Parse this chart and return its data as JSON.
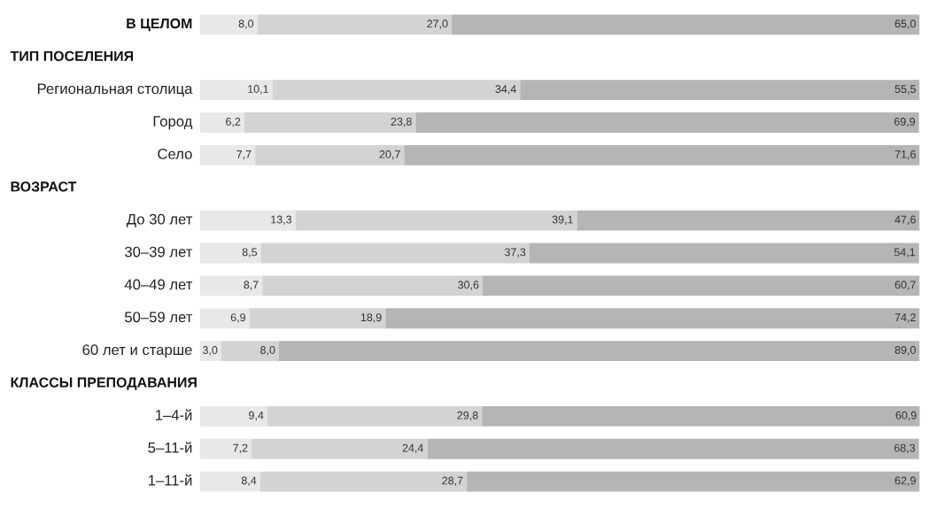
{
  "chart_data": {
    "type": "bar",
    "orientation": "horizontal",
    "stacked": true,
    "xlim": [
      0,
      100
    ],
    "tick_labels": "y",
    "annotations": [
      "ТИП ПОСЕЛЕНИЯ",
      "ВОЗРАСТ",
      "КЛАССЫ ПРЕПОДАВАНИЯ"
    ],
    "categories": [
      "В ЦЕЛОМ",
      null,
      "Региональная столица",
      "Город",
      "Село",
      null,
      "До 30 лет",
      "30–39 лет",
      "40–49 лет",
      "50–59 лет",
      "60 лет и старше",
      null,
      "1–4-й",
      "5–11-й",
      "1–11-й"
    ],
    "series": [
      {
        "color": "#e8e8e8",
        "values": [
          8.0,
          null,
          10.1,
          6.2,
          7.7,
          null,
          13.3,
          8.5,
          8.7,
          6.9,
          3.0,
          null,
          9.4,
          7.2,
          8.4
        ],
        "value_labels": [
          "8,0",
          null,
          "10,1",
          "6,2",
          "7,7",
          null,
          "13,3",
          "8,5",
          "8,7",
          "6,9",
          "3,0",
          null,
          "9,4",
          "7,2",
          "8,4"
        ]
      },
      {
        "color": "#d3d3d3",
        "values": [
          27.0,
          null,
          34.4,
          23.8,
          20.7,
          null,
          39.1,
          37.3,
          30.6,
          18.9,
          8.0,
          null,
          29.8,
          24.4,
          28.7
        ],
        "value_labels": [
          "27,0",
          null,
          "34,4",
          "23,8",
          "20,7",
          null,
          "39,1",
          "37,3",
          "30,6",
          "18,9",
          "8,0",
          null,
          "29,8",
          "24,4",
          "28,7"
        ]
      },
      {
        "color": "#b5b5b5",
        "values": [
          65.0,
          null,
          55.5,
          69.9,
          71.6,
          null,
          47.6,
          54.1,
          60.7,
          74.2,
          89.0,
          null,
          60.9,
          68.3,
          62.9
        ],
        "value_labels": [
          "65,0",
          null,
          "55,5",
          "69,9",
          "71,6",
          null,
          "47,6",
          "54,1",
          "60,7",
          "74,2",
          "89,0",
          null,
          "60,9",
          "68,3",
          "62,9"
        ]
      }
    ]
  }
}
